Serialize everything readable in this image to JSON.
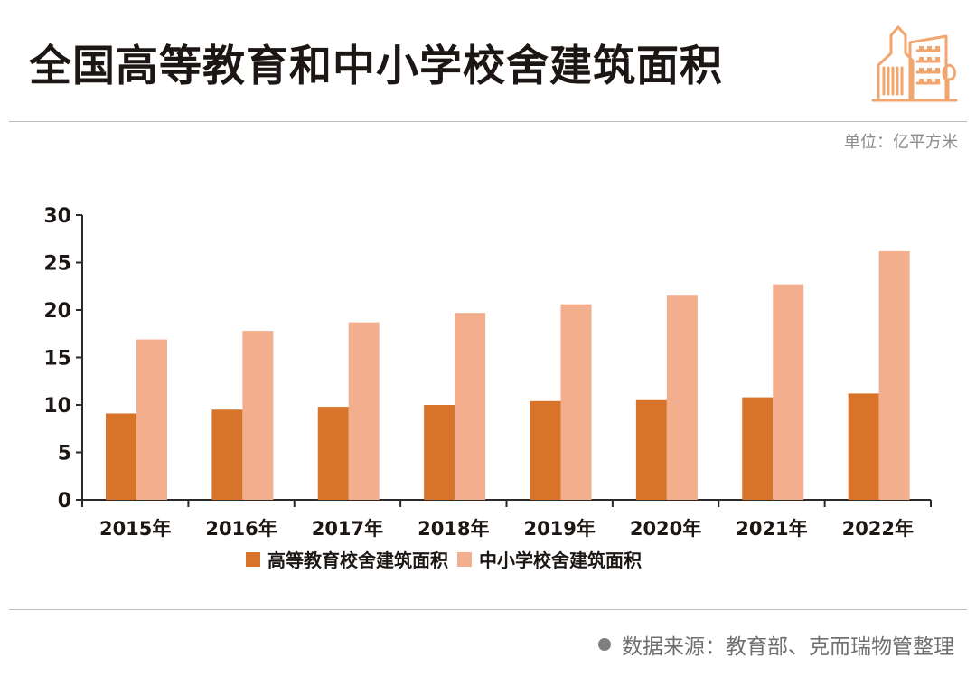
{
  "title": "全国高等教育和中小学校舍建筑面积",
  "unit": "单位：亿平方米",
  "source": "数据来源：教育部、克而瑞物管整理",
  "icon": "building-icon",
  "colors": {
    "higher_education": "#D8742A",
    "primary_secondary": "#F2AE8D",
    "axis": "#2a2a2a"
  },
  "chart_data": {
    "type": "bar",
    "categories": [
      "2015年",
      "2016年",
      "2017年",
      "2018年",
      "2019年",
      "2020年",
      "2021年",
      "2022年"
    ],
    "series": [
      {
        "name": "高等教育校舍建筑面积",
        "values": [
          9.1,
          9.5,
          9.8,
          10.0,
          10.4,
          10.5,
          10.8,
          11.2
        ]
      },
      {
        "name": "中小学校舍建筑面积",
        "values": [
          16.9,
          17.8,
          18.7,
          19.7,
          20.6,
          21.6,
          22.7,
          26.2
        ]
      }
    ],
    "ylim": [
      0,
      30
    ],
    "yticks": [
      0,
      5,
      10,
      15,
      20,
      25,
      30
    ],
    "grid": false,
    "legend": "bottom"
  }
}
